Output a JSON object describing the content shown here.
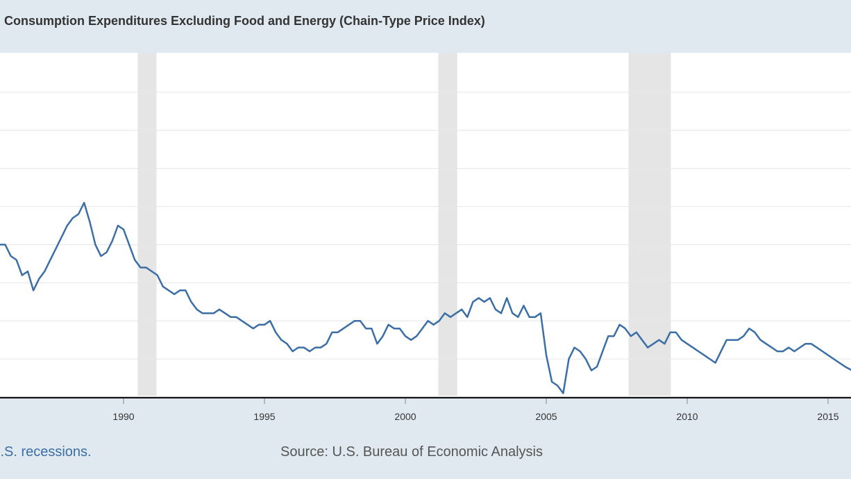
{
  "header": {
    "title": "al Consumption Expenditures Excluding Food and Energy (Chain-Type Price Index)"
  },
  "footer": {
    "recessions_note": "U.S. recessions.",
    "source": "Source: U.S. Bureau of Economic Analysis"
  },
  "colors": {
    "line": "#3a6ea5",
    "recession": "#e5e5e5",
    "grid": "#e6e6e6",
    "axis": "#111111",
    "background": "#e1e9f0"
  },
  "chart_data": {
    "type": "line",
    "title": "al Consumption Expenditures Excluding Food and Energy (Chain-Type Price Index)",
    "xlabel": "",
    "ylabel": "",
    "x_ticks": [
      "1990",
      "1995",
      "2000",
      "2005",
      "2010",
      "2015"
    ],
    "grid": true,
    "legend": "none",
    "xlim": [
      1985.6,
      2015.85
    ],
    "ylim": [
      0.0,
      9.0
    ],
    "recessions": [
      [
        1990.5,
        1991.17
      ],
      [
        2001.17,
        2001.84
      ],
      [
        2007.92,
        2009.42
      ]
    ],
    "series": [
      {
        "values": [
          [
            1985.6,
            4.0
          ],
          [
            1985.8,
            4.0
          ],
          [
            1986.0,
            3.7
          ],
          [
            1986.2,
            3.6
          ],
          [
            1986.4,
            3.2
          ],
          [
            1986.6,
            3.3
          ],
          [
            1986.8,
            2.8
          ],
          [
            1987.0,
            3.1
          ],
          [
            1987.2,
            3.3
          ],
          [
            1987.4,
            3.6
          ],
          [
            1987.6,
            3.9
          ],
          [
            1987.8,
            4.2
          ],
          [
            1988.0,
            4.5
          ],
          [
            1988.2,
            4.7
          ],
          [
            1988.4,
            4.8
          ],
          [
            1988.6,
            5.1
          ],
          [
            1988.8,
            4.6
          ],
          [
            1989.0,
            4.0
          ],
          [
            1989.2,
            3.7
          ],
          [
            1989.4,
            3.8
          ],
          [
            1989.6,
            4.1
          ],
          [
            1989.8,
            4.5
          ],
          [
            1990.0,
            4.4
          ],
          [
            1990.2,
            4.0
          ],
          [
            1990.4,
            3.6
          ],
          [
            1990.6,
            3.4
          ],
          [
            1990.8,
            3.4
          ],
          [
            1991.0,
            3.3
          ],
          [
            1991.2,
            3.2
          ],
          [
            1991.4,
            2.9
          ],
          [
            1991.6,
            2.8
          ],
          [
            1991.8,
            2.7
          ],
          [
            1992.0,
            2.8
          ],
          [
            1992.2,
            2.8
          ],
          [
            1992.4,
            2.5
          ],
          [
            1992.6,
            2.3
          ],
          [
            1992.8,
            2.2
          ],
          [
            1993.0,
            2.2
          ],
          [
            1993.2,
            2.2
          ],
          [
            1993.4,
            2.3
          ],
          [
            1993.6,
            2.2
          ],
          [
            1993.8,
            2.1
          ],
          [
            1994.0,
            2.1
          ],
          [
            1994.2,
            2.0
          ],
          [
            1994.4,
            1.9
          ],
          [
            1994.6,
            1.8
          ],
          [
            1994.8,
            1.9
          ],
          [
            1995.0,
            1.9
          ],
          [
            1995.2,
            2.0
          ],
          [
            1995.4,
            1.7
          ],
          [
            1995.6,
            1.5
          ],
          [
            1995.8,
            1.4
          ],
          [
            1996.0,
            1.2
          ],
          [
            1996.2,
            1.3
          ],
          [
            1996.4,
            1.3
          ],
          [
            1996.6,
            1.2
          ],
          [
            1996.8,
            1.3
          ],
          [
            1997.0,
            1.3
          ],
          [
            1997.2,
            1.4
          ],
          [
            1997.4,
            1.7
          ],
          [
            1997.6,
            1.7
          ],
          [
            1997.8,
            1.8
          ],
          [
            1998.0,
            1.9
          ],
          [
            1998.2,
            2.0
          ],
          [
            1998.4,
            2.0
          ],
          [
            1998.6,
            1.8
          ],
          [
            1998.8,
            1.8
          ],
          [
            1999.0,
            1.4
          ],
          [
            1999.2,
            1.6
          ],
          [
            1999.4,
            1.9
          ],
          [
            1999.6,
            1.8
          ],
          [
            1999.8,
            1.8
          ],
          [
            2000.0,
            1.6
          ],
          [
            2000.2,
            1.5
          ],
          [
            2000.4,
            1.6
          ],
          [
            2000.6,
            1.8
          ],
          [
            2000.8,
            2.0
          ],
          [
            2001.0,
            1.9
          ],
          [
            2001.2,
            2.0
          ],
          [
            2001.4,
            2.2
          ],
          [
            2001.6,
            2.1
          ],
          [
            2001.8,
            2.2
          ],
          [
            2002.0,
            2.3
          ],
          [
            2002.2,
            2.1
          ],
          [
            2002.4,
            2.5
          ],
          [
            2002.6,
            2.6
          ],
          [
            2002.8,
            2.5
          ],
          [
            2003.0,
            2.6
          ],
          [
            2003.2,
            2.3
          ],
          [
            2003.4,
            2.2
          ],
          [
            2003.6,
            2.6
          ],
          [
            2003.8,
            2.2
          ],
          [
            2004.0,
            2.1
          ],
          [
            2004.2,
            2.4
          ],
          [
            2004.4,
            2.1
          ],
          [
            2004.6,
            2.1
          ],
          [
            2004.8,
            2.2
          ],
          [
            2005.0,
            1.1
          ],
          [
            2005.2,
            0.4
          ],
          [
            2005.4,
            0.3
          ],
          [
            2005.6,
            0.1
          ],
          [
            2005.8,
            1.0
          ],
          [
            2006.0,
            1.3
          ],
          [
            2006.2,
            1.2
          ],
          [
            2006.4,
            1.0
          ],
          [
            2006.6,
            0.7
          ],
          [
            2006.8,
            0.8
          ],
          [
            2007.0,
            1.2
          ],
          [
            2007.2,
            1.6
          ],
          [
            2007.4,
            1.6
          ],
          [
            2007.6,
            1.9
          ],
          [
            2007.8,
            1.8
          ],
          [
            2008.0,
            1.6
          ],
          [
            2008.2,
            1.7
          ],
          [
            2008.4,
            1.5
          ],
          [
            2008.6,
            1.3
          ],
          [
            2008.8,
            1.4
          ],
          [
            2009.0,
            1.5
          ],
          [
            2009.2,
            1.4
          ],
          [
            2009.4,
            1.7
          ],
          [
            2009.6,
            1.7
          ],
          [
            2009.8,
            1.5
          ],
          [
            2010.0,
            1.4
          ],
          [
            2010.2,
            1.3
          ],
          [
            2010.4,
            1.2
          ],
          [
            2010.6,
            1.1
          ],
          [
            2010.8,
            1.0
          ],
          [
            2011.0,
            0.9
          ],
          [
            2011.2,
            1.2
          ],
          [
            2011.4,
            1.5
          ],
          [
            2011.6,
            1.5
          ],
          [
            2011.8,
            1.5
          ],
          [
            2012.0,
            1.6
          ],
          [
            2012.2,
            1.8
          ],
          [
            2012.4,
            1.7
          ],
          [
            2012.6,
            1.5
          ],
          [
            2012.8,
            1.4
          ],
          [
            2013.0,
            1.3
          ],
          [
            2013.2,
            1.2
          ],
          [
            2013.4,
            1.2
          ],
          [
            2013.6,
            1.3
          ],
          [
            2013.8,
            1.2
          ],
          [
            2014.0,
            1.3
          ],
          [
            2014.2,
            1.4
          ],
          [
            2014.4,
            1.4
          ],
          [
            2014.6,
            1.3
          ],
          [
            2014.8,
            1.2
          ],
          [
            2015.0,
            1.1
          ],
          [
            2015.2,
            1.0
          ],
          [
            2015.4,
            0.9
          ],
          [
            2015.6,
            0.8
          ],
          [
            2015.85,
            0.7
          ]
        ]
      }
    ]
  }
}
